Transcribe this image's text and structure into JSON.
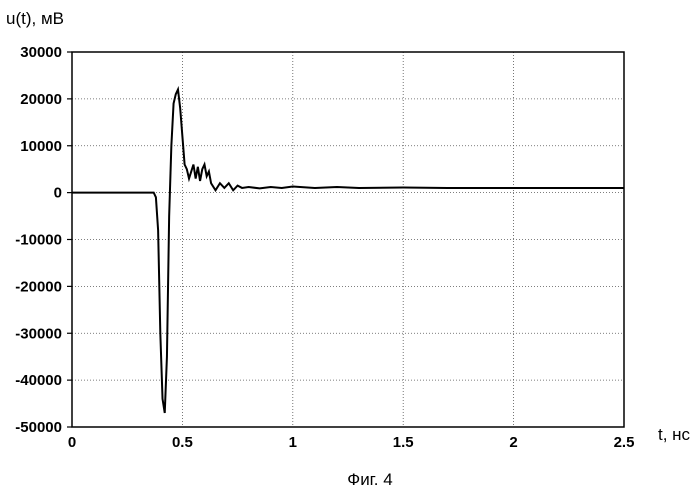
{
  "chart_data": {
    "type": "line",
    "ylabel": "u(t), мВ",
    "xlabel": "t, нс",
    "caption": "Фиг. 4",
    "xlim": [
      0,
      2.5
    ],
    "ylim": [
      -50000,
      30000
    ],
    "x_ticks": [
      0,
      0.5,
      1,
      1.5,
      2,
      2.5
    ],
    "x_tick_labels": [
      "0",
      "0.5",
      "1",
      "1.5",
      "2",
      "2.5"
    ],
    "y_ticks": [
      30000,
      20000,
      10000,
      0,
      -10000,
      -20000,
      -30000,
      -40000,
      -50000
    ],
    "y_tick_labels": [
      "30000",
      "20000",
      "10000",
      "0",
      "-10000",
      "-20000",
      "-30000",
      "-40000",
      "-50000"
    ],
    "grid": true,
    "line_color": "#000000",
    "series": [
      {
        "x": [
          0,
          0.1,
          0.2,
          0.3,
          0.37,
          0.38,
          0.39,
          0.4,
          0.41,
          0.42,
          0.43,
          0.44,
          0.45,
          0.46,
          0.47,
          0.48,
          0.49,
          0.5,
          0.51,
          0.52,
          0.53,
          0.54,
          0.55,
          0.56,
          0.57,
          0.58,
          0.59,
          0.6,
          0.61,
          0.62,
          0.63,
          0.65,
          0.67,
          0.69,
          0.71,
          0.73,
          0.75,
          0.77,
          0.8,
          0.85,
          0.9,
          0.95,
          1.0,
          1.1,
          1.2,
          1.3,
          1.5,
          1.7,
          2.0,
          2.2,
          2.5
        ],
        "y": [
          0,
          0,
          0,
          0,
          0,
          -1000,
          -8000,
          -30000,
          -44000,
          -47000,
          -35000,
          -5000,
          10000,
          19000,
          21000,
          22000,
          18000,
          12000,
          6000,
          5000,
          3000,
          4500,
          6000,
          3000,
          5500,
          2500,
          5000,
          6000,
          3500,
          4500,
          2000,
          500,
          2000,
          1000,
          2000,
          500,
          1500,
          1000,
          1200,
          900,
          1200,
          1000,
          1300,
          1000,
          1200,
          1000,
          1100,
          1000,
          1000,
          1000,
          1000
        ]
      }
    ]
  }
}
